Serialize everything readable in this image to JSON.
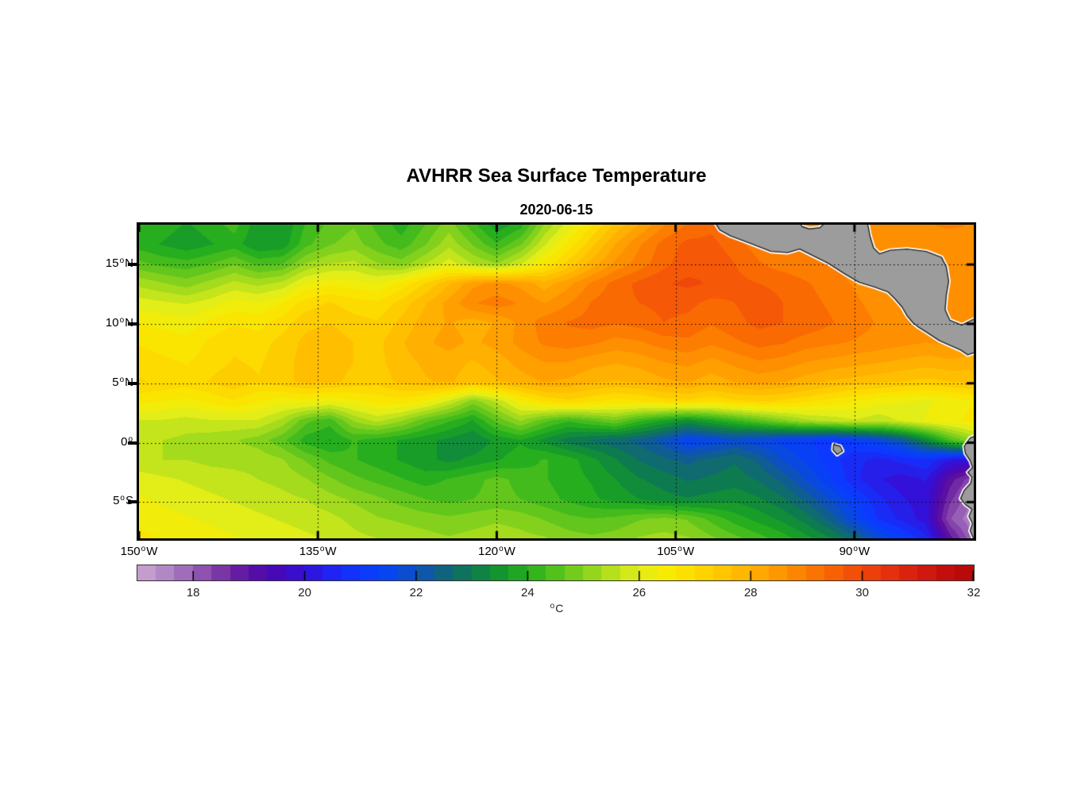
{
  "figure": {
    "title": "AVHRR Sea Surface Temperature",
    "subtitle": "2020-06-15",
    "background": "#ffffff"
  },
  "chart_data": {
    "type": "heatmap",
    "title": "AVHRR Sea Surface Temperature",
    "subtitle": "2020-06-15",
    "xlabel": "",
    "ylabel": "",
    "grid": "dotted",
    "lon_range": [
      -150,
      -80
    ],
    "lat_range": [
      -8.05,
      18.35
    ],
    "x_ticks": [
      {
        "value": -150,
        "label": "150°W"
      },
      {
        "value": -135,
        "label": "135°W"
      },
      {
        "value": -120,
        "label": "120°W"
      },
      {
        "value": -105,
        "label": "105°W"
      },
      {
        "value": -90,
        "label": "90°W"
      }
    ],
    "y_ticks": [
      {
        "value": 15,
        "label": "15°N"
      },
      {
        "value": 10,
        "label": "10°N"
      },
      {
        "value": 5,
        "label": "5°N"
      },
      {
        "value": 0,
        "label": "0°"
      },
      {
        "value": -5,
        "label": "5°S"
      }
    ],
    "grid_lons": [
      -135,
      -120,
      -105,
      -90
    ],
    "grid_lats": [
      15,
      10,
      5,
      0,
      -5
    ],
    "colorbar": {
      "min": 17,
      "max": 32,
      "ticks": [
        18,
        20,
        22,
        24,
        26,
        28,
        30,
        32
      ],
      "unit": "°C",
      "orientation": "horizontal",
      "position": "below"
    },
    "colormap": [
      [
        17.0,
        "#CBA8D2"
      ],
      [
        17.5,
        "#B287C6"
      ],
      [
        18.0,
        "#9760B6"
      ],
      [
        18.5,
        "#7B36A6"
      ],
      [
        19.0,
        "#5C0FA0"
      ],
      [
        19.5,
        "#4708B8"
      ],
      [
        20.0,
        "#3311D8"
      ],
      [
        20.5,
        "#1F24F2"
      ],
      [
        21.0,
        "#0D38FF"
      ],
      [
        21.5,
        "#0645F0"
      ],
      [
        22.0,
        "#0D51BE"
      ],
      [
        22.5,
        "#10637E"
      ],
      [
        23.0,
        "#0E7A50"
      ],
      [
        23.5,
        "#12952E"
      ],
      [
        24.0,
        "#27AE1E"
      ],
      [
        24.5,
        "#52C11C"
      ],
      [
        25.0,
        "#83D11C"
      ],
      [
        25.5,
        "#B4E01C"
      ],
      [
        26.0,
        "#E3ED18"
      ],
      [
        26.5,
        "#F8EB02"
      ],
      [
        27.0,
        "#FDDA00"
      ],
      [
        27.5,
        "#FFC600"
      ],
      [
        28.0,
        "#FFB000"
      ],
      [
        28.5,
        "#FF9800"
      ],
      [
        29.0,
        "#FC7D00"
      ],
      [
        29.5,
        "#F76104"
      ],
      [
        30.0,
        "#F0470A"
      ],
      [
        30.5,
        "#E4300E"
      ],
      [
        31.0,
        "#D51D10"
      ],
      [
        31.5,
        "#C30E0D"
      ],
      [
        32.0,
        "#B20806"
      ]
    ],
    "sst_grid": {
      "units": "°C",
      "lon_start": -150,
      "lon_step": 2,
      "lat_start": 18.35,
      "lat_step": -1.65,
      "values": [
        [
          24.2,
          24.0,
          23.8,
          24.0,
          24.3,
          23.6,
          23.5,
          24.2,
          24.6,
          24.8,
          24.4,
          24.0,
          24.5,
          25.0,
          24.3,
          23.6,
          24.0,
          25.2,
          26.0,
          26.8,
          27.6,
          28.2,
          28.8,
          29.2,
          29.4,
          29.2,
          29.0,
          28.8,
          28.7,
          28.8,
          28.9,
          28.8,
          28.7,
          28.8,
          28.9,
          28.8
        ],
        [
          24.0,
          23.8,
          23.6,
          23.8,
          24.0,
          23.5,
          23.6,
          24.4,
          24.8,
          25.0,
          24.6,
          24.3,
          24.8,
          25.4,
          24.8,
          24.2,
          24.8,
          25.8,
          26.6,
          27.4,
          28.2,
          28.8,
          29.3,
          29.6,
          29.6,
          29.3,
          29.0,
          28.9,
          28.8,
          28.7,
          28.6,
          28.7,
          28.8,
          28.7,
          28.6,
          28.7
        ],
        [
          24.6,
          24.4,
          24.3,
          24.5,
          24.8,
          24.4,
          24.5,
          25.2,
          25.5,
          25.6,
          25.2,
          25.0,
          25.5,
          26.0,
          25.5,
          25.2,
          25.8,
          26.6,
          27.3,
          28.0,
          28.6,
          29.0,
          29.4,
          29.7,
          29.8,
          29.5,
          29.2,
          29.0,
          28.9,
          28.8,
          28.7,
          28.6,
          28.5,
          28.6,
          28.7,
          28.6
        ],
        [
          25.4,
          25.2,
          25.0,
          25.3,
          25.6,
          25.4,
          25.6,
          26.2,
          26.4,
          26.3,
          26.2,
          26.6,
          27.2,
          27.8,
          28.4,
          28.6,
          28.4,
          28.0,
          28.4,
          28.9,
          29.3,
          29.6,
          29.8,
          29.9,
          29.8,
          29.6,
          29.5,
          29.4,
          29.2,
          29.0,
          28.8,
          28.6,
          28.5,
          28.6,
          28.7,
          28.6
        ],
        [
          26.0,
          25.9,
          25.8,
          26.0,
          26.3,
          26.2,
          26.5,
          27.0,
          27.2,
          27.0,
          26.9,
          27.3,
          27.8,
          28.3,
          28.8,
          29.0,
          28.8,
          28.5,
          28.8,
          29.2,
          29.4,
          29.5,
          29.6,
          29.6,
          29.4,
          29.5,
          29.7,
          29.5,
          29.3,
          29.1,
          28.9,
          28.7,
          28.6,
          28.7,
          28.8,
          28.7
        ],
        [
          26.5,
          26.4,
          26.3,
          26.6,
          26.8,
          26.7,
          27.0,
          27.4,
          27.5,
          27.3,
          27.2,
          27.6,
          28.0,
          28.2,
          28.0,
          28.2,
          28.6,
          29.0,
          29.2,
          29.3,
          29.2,
          29.3,
          29.5,
          29.4,
          29.2,
          29.4,
          29.6,
          29.5,
          29.4,
          29.2,
          29.0,
          28.8,
          28.6,
          28.7,
          28.8,
          28.7
        ],
        [
          26.8,
          26.7,
          26.6,
          26.9,
          27.1,
          27.0,
          27.3,
          27.6,
          27.7,
          27.5,
          27.4,
          27.8,
          28.1,
          28.3,
          28.1,
          28.3,
          28.6,
          28.9,
          29.0,
          28.9,
          28.7,
          28.8,
          29.0,
          29.1,
          28.9,
          29.1,
          29.3,
          29.2,
          29.0,
          28.9,
          28.8,
          28.7,
          28.6,
          28.5,
          28.6,
          28.5
        ],
        [
          27.0,
          26.9,
          26.8,
          27.0,
          27.2,
          27.1,
          27.4,
          27.6,
          27.7,
          27.5,
          27.4,
          27.7,
          27.9,
          28.0,
          27.8,
          28.0,
          28.3,
          28.5,
          28.5,
          28.3,
          28.2,
          28.3,
          28.5,
          28.6,
          28.4,
          28.6,
          28.8,
          28.7,
          28.5,
          28.4,
          28.3,
          28.2,
          28.1,
          28.0,
          28.1,
          28.0
        ],
        [
          27.2,
          27.1,
          27.0,
          27.2,
          27.4,
          27.2,
          27.4,
          27.6,
          27.6,
          27.4,
          27.3,
          27.6,
          27.8,
          27.9,
          27.6,
          27.8,
          28.0,
          28.2,
          28.1,
          27.9,
          27.8,
          27.9,
          28.1,
          28.2,
          28.0,
          28.2,
          28.3,
          28.2,
          28.0,
          27.8,
          27.7,
          27.6,
          27.5,
          27.4,
          27.5,
          27.6
        ],
        [
          26.6,
          26.5,
          26.4,
          26.6,
          26.8,
          26.5,
          26.3,
          26.4,
          26.2,
          26.4,
          26.6,
          26.7,
          26.4,
          25.8,
          25.0,
          25.6,
          26.4,
          26.9,
          27.1,
          26.9,
          26.7,
          26.8,
          27.0,
          27.1,
          26.9,
          27.1,
          27.2,
          27.1,
          26.9,
          26.7,
          26.5,
          26.3,
          26.2,
          26.1,
          26.3,
          26.5
        ],
        [
          25.8,
          25.8,
          25.7,
          25.8,
          25.8,
          25.8,
          25.4,
          24.6,
          24.3,
          25.2,
          25.6,
          25.2,
          24.6,
          24.2,
          23.8,
          24.6,
          25.2,
          24.6,
          24.2,
          24.5,
          24.8,
          24.2,
          23.8,
          23.4,
          23.8,
          24.2,
          24.6,
          25.0,
          25.4,
          25.6,
          25.8,
          25.6,
          25.9,
          26.2,
          26.4,
          26.6
        ],
        [
          25.6,
          25.5,
          25.4,
          25.3,
          25.2,
          25.0,
          24.6,
          24.0,
          23.8,
          24.2,
          24.0,
          23.8,
          23.6,
          23.4,
          23.2,
          23.6,
          23.8,
          23.4,
          23.0,
          22.8,
          22.6,
          22.4,
          22.0,
          21.4,
          21.6,
          21.8,
          21.6,
          21.4,
          21.2,
          21.0,
          21.2,
          21.6,
          22.2,
          23.2,
          24.4,
          25.2
        ],
        [
          25.6,
          25.5,
          25.5,
          25.4,
          25.4,
          25.4,
          25.2,
          24.8,
          24.4,
          24.2,
          24.0,
          23.8,
          23.6,
          23.4,
          23.6,
          23.8,
          24.0,
          24.2,
          24.0,
          23.6,
          23.2,
          22.8,
          22.6,
          22.4,
          22.6,
          22.8,
          22.4,
          21.8,
          21.4,
          21.0,
          20.6,
          20.4,
          20.6,
          20.8,
          20.2,
          20.0
        ],
        [
          26.0,
          25.9,
          25.8,
          25.7,
          25.6,
          25.5,
          25.4,
          25.2,
          24.9,
          24.6,
          24.4,
          24.2,
          24.0,
          24.2,
          24.4,
          24.6,
          24.4,
          24.2,
          24.0,
          23.8,
          23.5,
          23.2,
          23.0,
          22.8,
          22.9,
          23.0,
          22.8,
          22.4,
          21.8,
          21.2,
          20.6,
          20.2,
          20.0,
          20.2,
          19.0,
          18.2
        ],
        [
          26.2,
          26.1,
          26.0,
          25.9,
          25.8,
          25.7,
          25.6,
          25.5,
          25.3,
          25.1,
          24.9,
          24.7,
          24.5,
          24.4,
          24.5,
          24.6,
          24.5,
          24.3,
          24.1,
          23.9,
          23.7,
          23.5,
          23.3,
          23.2,
          23.3,
          23.4,
          23.2,
          22.9,
          22.4,
          21.8,
          21.2,
          20.6,
          20.2,
          20.0,
          18.6,
          17.8
        ],
        [
          26.4,
          26.3,
          26.2,
          26.1,
          26.0,
          25.9,
          25.8,
          25.7,
          25.6,
          25.4,
          25.2,
          25.1,
          25.0,
          24.9,
          25.0,
          25.1,
          25.0,
          24.8,
          24.6,
          24.5,
          24.6,
          24.8,
          24.9,
          24.8,
          24.4,
          24.0,
          23.7,
          23.4,
          23.0,
          22.4,
          21.6,
          20.8,
          20.4,
          20.0,
          18.2,
          17.5
        ],
        [
          26.6,
          26.5,
          26.4,
          26.3,
          26.2,
          26.1,
          26.0,
          25.9,
          25.8,
          25.6,
          25.5,
          25.4,
          25.3,
          25.2,
          25.3,
          25.4,
          25.3,
          25.2,
          25.0,
          24.9,
          25.0,
          25.2,
          25.3,
          25.2,
          24.9,
          24.6,
          24.3,
          24.0,
          23.6,
          23.2,
          22.6,
          21.8,
          21.2,
          20.6,
          19.0,
          17.8
        ]
      ]
    },
    "land_color": "#9C9C9C",
    "coast_outline": "#222222",
    "coast_halo": "#ffffff",
    "land_polygons": {
      "central_america": [
        [
          -101.8,
          18.7
        ],
        [
          -101.3,
          17.9
        ],
        [
          -100.4,
          17.4
        ],
        [
          -98.8,
          16.8
        ],
        [
          -97.0,
          16.1
        ],
        [
          -95.6,
          16.0
        ],
        [
          -94.6,
          16.3
        ],
        [
          -93.6,
          15.8
        ],
        [
          -92.2,
          15.1
        ],
        [
          -90.8,
          14.2
        ],
        [
          -89.6,
          13.5
        ],
        [
          -88.3,
          13.1
        ],
        [
          -87.2,
          12.7
        ],
        [
          -86.6,
          12.1
        ],
        [
          -86.0,
          11.4
        ],
        [
          -85.6,
          10.7
        ],
        [
          -85.1,
          10.1
        ],
        [
          -84.6,
          9.7
        ],
        [
          -83.8,
          9.2
        ],
        [
          -82.9,
          8.6
        ],
        [
          -82.0,
          8.2
        ],
        [
          -81.1,
          7.8
        ],
        [
          -80.5,
          7.4
        ],
        [
          -79.6,
          7.7
        ],
        [
          -79.6,
          10.6
        ],
        [
          -81.0,
          9.9
        ],
        [
          -82.0,
          10.3
        ],
        [
          -82.4,
          11.2
        ],
        [
          -82.3,
          12.4
        ],
        [
          -82.1,
          13.6
        ],
        [
          -82.3,
          14.8
        ],
        [
          -82.7,
          15.6
        ],
        [
          -84.0,
          16.1
        ],
        [
          -85.6,
          16.3
        ],
        [
          -87.0,
          16.2
        ],
        [
          -87.9,
          15.9
        ],
        [
          -88.4,
          16.4
        ],
        [
          -88.7,
          17.4
        ],
        [
          -88.95,
          18.7
        ],
        [
          -92.3,
          18.7
        ],
        [
          -92.9,
          18.1
        ],
        [
          -93.8,
          18.0
        ],
        [
          -94.4,
          18.2
        ],
        [
          -94.7,
          18.7
        ]
      ],
      "south_america": [
        [
          -79.6,
          0.7
        ],
        [
          -80.3,
          0.4
        ],
        [
          -80.8,
          -0.3
        ],
        [
          -80.7,
          -0.9
        ],
        [
          -80.3,
          -1.5
        ],
        [
          -80.1,
          -2.1
        ],
        [
          -80.5,
          -2.5
        ],
        [
          -80.15,
          -2.9
        ],
        [
          -80.25,
          -3.4
        ],
        [
          -80.8,
          -4.0
        ],
        [
          -81.1,
          -4.7
        ],
        [
          -80.7,
          -5.2
        ],
        [
          -80.15,
          -5.6
        ],
        [
          -80.4,
          -6.2
        ],
        [
          -80.1,
          -6.8
        ],
        [
          -80.3,
          -7.4
        ],
        [
          -80.05,
          -8.0
        ],
        [
          -79.6,
          -8.4
        ]
      ],
      "galapagos": [
        [
          -91.75,
          -0.15
        ],
        [
          -91.2,
          -0.3
        ],
        [
          -91.0,
          -0.7
        ],
        [
          -91.45,
          -1.0
        ],
        [
          -91.8,
          -0.6
        ]
      ]
    }
  }
}
